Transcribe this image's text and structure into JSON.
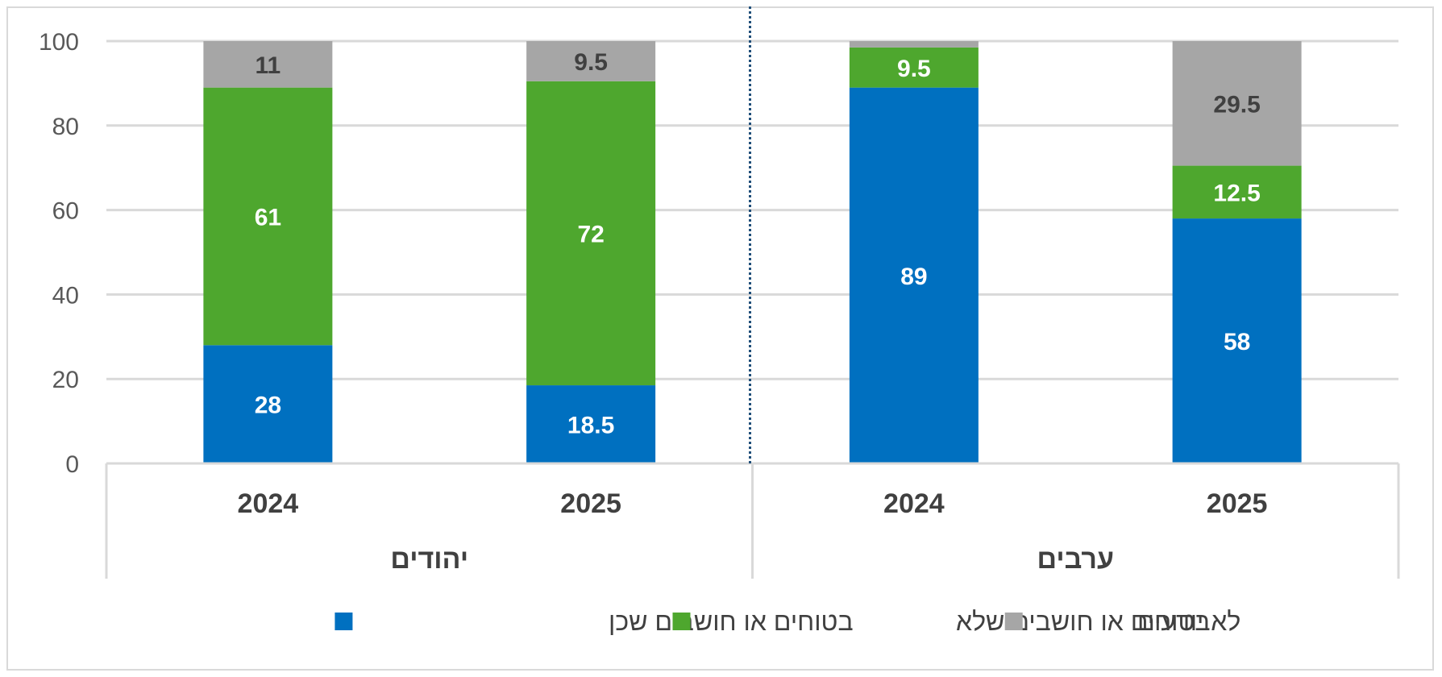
{
  "chart_data": {
    "type": "bar",
    "stacked": true,
    "ylim": [
      0,
      100
    ],
    "yticks": [
      "0",
      "20",
      "40",
      "60",
      "80",
      "100"
    ],
    "groups": [
      {
        "label": "יהודים",
        "categories": [
          "2024",
          "2025"
        ]
      },
      {
        "label": "ערבים",
        "categories": [
          "2024",
          "2025"
        ]
      }
    ],
    "categories": [
      "2024",
      "2025",
      "2024",
      "2025"
    ],
    "series": [
      {
        "name": "בטוחים או חושבים שכן",
        "color": "#0070C0",
        "values": [
          28,
          18.5,
          89,
          58
        ],
        "labels": [
          "28",
          "18.5",
          "89",
          "58"
        ]
      },
      {
        "name": "בטוחים או חושבים שלא",
        "color": "#4EA72E",
        "values": [
          61,
          72,
          9.5,
          12.5
        ],
        "labels": [
          "61",
          "72",
          "9.5",
          "12.5"
        ]
      },
      {
        "name": "לא יודעים",
        "color": "#A6A6A6",
        "values": [
          11,
          9.5,
          1.5,
          29.5
        ],
        "labels": [
          "11",
          "9.5",
          "",
          "29.5"
        ]
      }
    ],
    "grid": true,
    "legend": "bottom",
    "group_separator": "dotted line between groups"
  }
}
